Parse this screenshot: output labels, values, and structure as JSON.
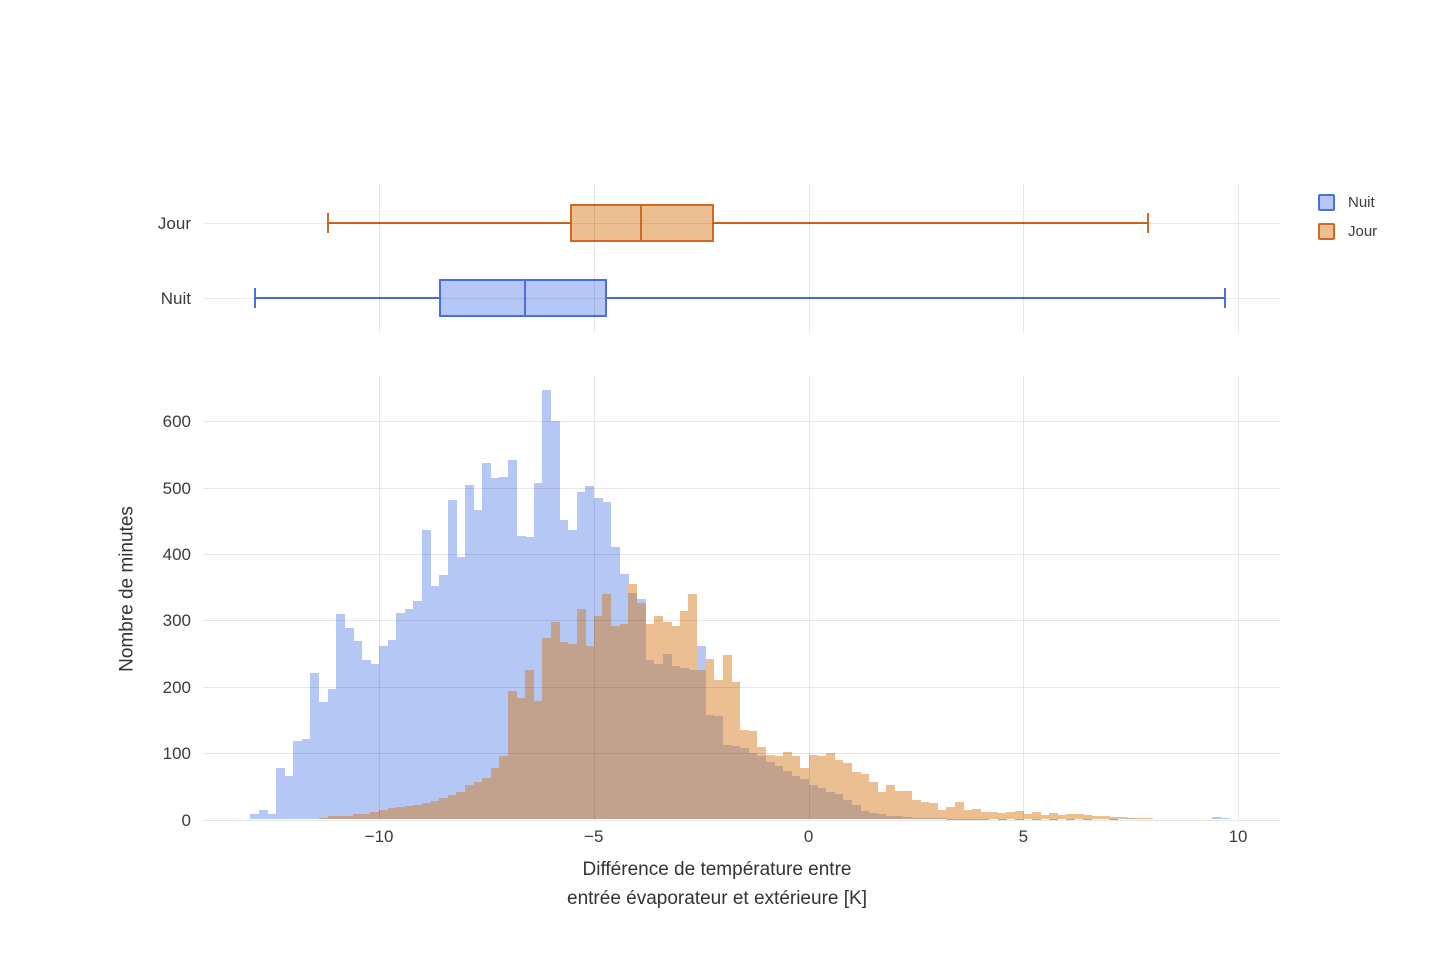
{
  "figure": {
    "background": "#ffffff",
    "text_color": "#3b3b3b",
    "grid_color": "#e5e5e5"
  },
  "legend": {
    "items": [
      {
        "label": "Nuit",
        "fill": "#b5c7f4",
        "border": "#4b6fe0"
      },
      {
        "label": "Jour",
        "fill": "#ebbf92",
        "border": "#d2691e"
      }
    ]
  },
  "chart_data": [
    {
      "type": "box",
      "orientation": "horizontal",
      "categories": [
        "Jour",
        "Nuit"
      ],
      "x_range": [
        -14.1,
        11.0
      ],
      "x_ticks": [
        -10,
        -5,
        0,
        5,
        10
      ],
      "series": [
        {
          "name": "Jour",
          "line_color": "#d2691e",
          "fill": "#ebbf92",
          "whisker_min": -11.2,
          "q1": -5.55,
          "median": -3.9,
          "q3": -2.2,
          "whisker_max": 7.9
        },
        {
          "name": "Nuit",
          "line_color": "#4b6fe0",
          "fill": "#b5c7f4",
          "whisker_min": -12.9,
          "q1": -8.6,
          "median": -6.6,
          "q3": -4.7,
          "whisker_max": 9.7
        }
      ]
    },
    {
      "type": "histogram",
      "barmode": "overlay",
      "bin_width": 0.2,
      "x_range": [
        -14.1,
        11.0
      ],
      "y_range": [
        0,
        670
      ],
      "x_ticks": [
        -10,
        -5,
        0,
        5,
        10
      ],
      "x_tick_labels": [
        "−10",
        "−5",
        "0",
        "5",
        "10"
      ],
      "y_ticks": [
        0,
        100,
        200,
        300,
        400,
        500,
        600
      ],
      "y_tick_labels": [
        "0",
        "100",
        "200",
        "300",
        "400",
        "500",
        "600"
      ],
      "xlabel_lines": [
        "Différence de température entre",
        "entrée évaporateur et extérieure [K]"
      ],
      "ylabel": "Nombre de minutes",
      "overlap_color": "#c2a28d",
      "series": [
        {
          "name": "Nuit",
          "fill": "#b5c7f4",
          "bin_start": -13.0,
          "values": [
            8,
            14,
            8,
            78,
            65,
            118,
            121,
            221,
            177,
            196,
            310,
            288,
            269,
            241,
            234,
            262,
            270,
            312,
            318,
            330,
            437,
            352,
            368,
            481,
            395,
            504,
            466,
            537,
            514,
            517,
            542,
            428,
            426,
            507,
            648,
            600,
            451,
            436,
            494,
            502,
            484,
            479,
            411,
            370,
            342,
            332,
            240,
            235,
            250,
            231,
            228,
            225,
            262,
            158,
            156,
            113,
            111,
            108,
            100,
            95,
            87,
            80,
            73,
            66,
            61,
            52,
            48,
            42,
            38,
            30,
            22,
            13,
            10,
            8,
            6,
            5,
            4,
            3,
            3,
            2,
            2,
            1,
            1,
            1,
            1,
            1,
            0,
            1,
            0,
            1,
            0,
            1,
            0,
            1,
            0,
            1,
            0,
            1,
            0,
            0,
            1,
            0,
            3,
            0,
            0,
            0,
            0,
            0,
            0,
            0,
            0,
            0,
            4,
            2
          ]
        },
        {
          "name": "Jour",
          "fill": "#ebbf92",
          "bin_start": -11.4,
          "values": [
            3,
            5,
            6,
            6,
            8,
            9,
            11,
            15,
            17,
            19,
            20,
            22,
            25,
            28,
            32,
            37,
            42,
            52,
            57,
            62,
            77,
            95,
            193,
            183,
            226,
            178,
            274,
            297,
            267,
            264,
            317,
            262,
            307,
            340,
            292,
            294,
            355,
            327,
            295,
            307,
            297,
            292,
            315,
            340,
            226,
            242,
            211,
            248,
            208,
            135,
            133,
            110,
            97,
            95,
            101,
            95,
            77,
            97,
            95,
            100,
            90,
            85,
            72,
            68,
            56,
            42,
            52,
            43,
            43,
            29,
            27,
            25,
            14,
            19,
            27,
            14,
            16,
            12,
            11,
            10,
            11,
            13,
            9,
            11,
            7,
            10,
            7,
            9,
            8,
            7,
            6,
            5,
            4,
            4,
            3,
            3,
            3
          ]
        }
      ]
    }
  ]
}
